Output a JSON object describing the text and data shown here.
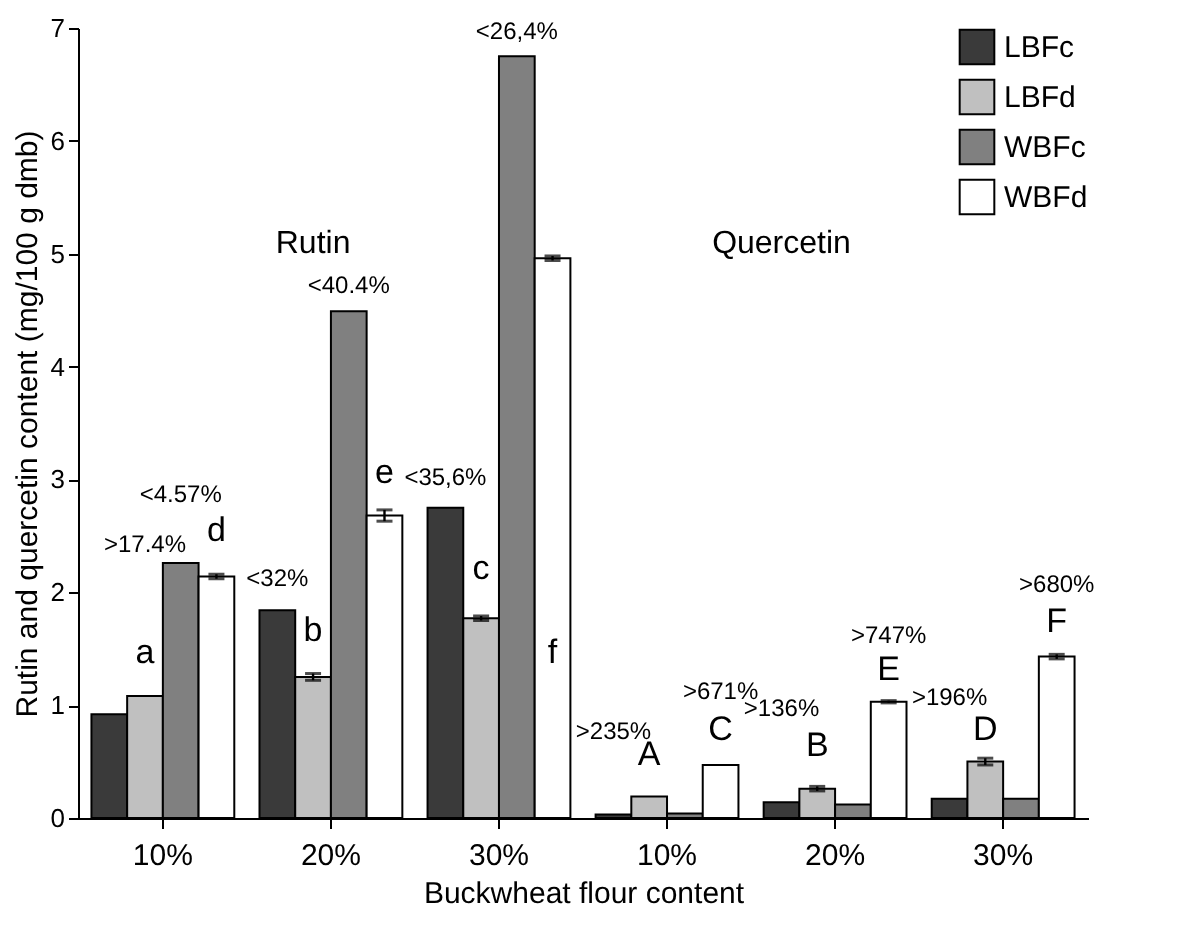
{
  "chart_data": {
    "type": "bar",
    "xlabel": "Buckwheat flour content",
    "ylabel": "Rutin and quercetin content (mg/100 g dmb)",
    "categories": [
      "10%",
      "20%",
      "30%",
      "10%",
      "20%",
      "30%"
    ],
    "series": [
      {
        "name": "LBFc",
        "color": "#3a3a3a",
        "values": [
          0.92,
          1.84,
          2.75,
          0.03,
          0.14,
          0.17
        ]
      },
      {
        "name": "LBFd",
        "color": "#c0c0c0",
        "values": [
          1.08,
          1.25,
          1.77,
          0.19,
          0.26,
          0.5
        ],
        "errors": [
          null,
          0.03,
          0.02,
          null,
          0.02,
          0.03
        ]
      },
      {
        "name": "WBFc",
        "color": "#808080",
        "values": [
          2.26,
          4.49,
          6.75,
          0.04,
          0.12,
          0.17
        ]
      },
      {
        "name": "WBFd",
        "color": "#ffffff",
        "values": [
          2.14,
          2.68,
          4.96,
          0.47,
          1.03,
          1.43
        ],
        "errors": [
          0.02,
          0.05,
          0.02,
          null,
          0.01,
          0.02
        ]
      }
    ],
    "ylim": [
      0,
      7
    ],
    "yticks": [
      0,
      1,
      2,
      3,
      4,
      5,
      6,
      7
    ],
    "grid": false,
    "legend": "top right",
    "annotations": [
      ">17.4%",
      "a",
      "<4.57%",
      "d",
      "<32%",
      "b",
      "<40.4%",
      "e",
      "<35,6%",
      "c",
      "<26,4%",
      "f",
      ">235%",
      "A",
      ">671%",
      "C",
      ">136%",
      "B",
      ">747%",
      "E",
      ">196%",
      "D",
      ">680%",
      "F",
      "Rutin",
      "Quercetin"
    ]
  }
}
